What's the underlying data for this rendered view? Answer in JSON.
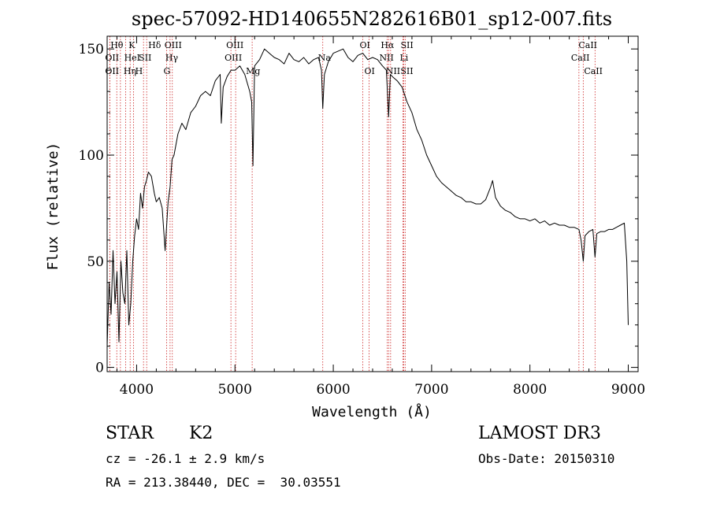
{
  "chart_data": {
    "type": "line",
    "title": "spec-57092-HD140655N282616B01_sp12-007.fits",
    "xlabel": "Wavelength (Å)",
    "ylabel": "Flux (relative)",
    "xlim": [
      3700,
      9100
    ],
    "ylim": [
      -2,
      156
    ],
    "x_ticks": [
      4000,
      5000,
      6000,
      7000,
      8000,
      9000
    ],
    "x_tick_labels": [
      "4000",
      "5000",
      "6000",
      "7000",
      "8000",
      "9000"
    ],
    "y_ticks": [
      0,
      50,
      100,
      150
    ],
    "y_tick_labels": [
      "0",
      "50",
      "100",
      "150"
    ],
    "grid": false,
    "series": [
      {
        "name": "spectrum",
        "x": [
          3700,
          3720,
          3740,
          3760,
          3780,
          3800,
          3820,
          3840,
          3860,
          3880,
          3900,
          3920,
          3940,
          3960,
          3980,
          4000,
          4020,
          4040,
          4060,
          4080,
          4100,
          4120,
          4150,
          4180,
          4200,
          4230,
          4260,
          4290,
          4320,
          4340,
          4360,
          4380,
          4420,
          4460,
          4500,
          4550,
          4600,
          4650,
          4700,
          4750,
          4800,
          4850,
          4861,
          4880,
          4920,
          4960,
          5000,
          5050,
          5100,
          5150,
          5170,
          5183,
          5200,
          5250,
          5300,
          5350,
          5400,
          5450,
          5500,
          5550,
          5600,
          5650,
          5700,
          5750,
          5800,
          5850,
          5880,
          5893,
          5910,
          5950,
          6000,
          6050,
          6100,
          6150,
          6200,
          6250,
          6300,
          6350,
          6400,
          6450,
          6500,
          6540,
          6563,
          6580,
          6600,
          6650,
          6700,
          6750,
          6800,
          6850,
          6900,
          6950,
          7000,
          7050,
          7100,
          7150,
          7200,
          7250,
          7300,
          7350,
          7400,
          7450,
          7500,
          7550,
          7600,
          7620,
          7650,
          7700,
          7750,
          7800,
          7850,
          7900,
          7950,
          8000,
          8050,
          8100,
          8150,
          8200,
          8250,
          8300,
          8350,
          8400,
          8450,
          8498,
          8520,
          8542,
          8560,
          8600,
          8640,
          8662,
          8680,
          8720,
          8760,
          8800,
          8840,
          8880,
          8920,
          8960,
          8985,
          9000
        ],
        "values": [
          10,
          40,
          25,
          55,
          30,
          45,
          12,
          50,
          35,
          30,
          55,
          20,
          30,
          50,
          62,
          70,
          65,
          82,
          75,
          85,
          88,
          92,
          90,
          82,
          78,
          80,
          75,
          55,
          78,
          85,
          98,
          100,
          110,
          115,
          112,
          120,
          123,
          128,
          130,
          128,
          135,
          138,
          115,
          132,
          137,
          140,
          140,
          142,
          138,
          130,
          125,
          95,
          142,
          145,
          150,
          148,
          146,
          145,
          143,
          148,
          145,
          144,
          146,
          143,
          145,
          146,
          140,
          122,
          138,
          144,
          148,
          149,
          150,
          146,
          144,
          147,
          148,
          145,
          146,
          145,
          142,
          140,
          118,
          138,
          137,
          135,
          132,
          125,
          120,
          112,
          107,
          100,
          95,
          90,
          87,
          85,
          83,
          81,
          80,
          78,
          78,
          77,
          77,
          79,
          85,
          88,
          80,
          76,
          74,
          73,
          71,
          70,
          70,
          69,
          70,
          68,
          69,
          67,
          68,
          67,
          67,
          66,
          66,
          65,
          60,
          50,
          62,
          64,
          65,
          52,
          63,
          64,
          64,
          65,
          65,
          66,
          67,
          68,
          50,
          20
        ]
      }
    ],
    "lines": [
      {
        "name": "Hθ",
        "x": 3798,
        "row": 0,
        "dx": -8
      },
      {
        "name": "OII",
        "x": 3727,
        "row": 1,
        "dx": -6
      },
      {
        "name": "OII",
        "x": 3727,
        "row": 2,
        "dx": -6
      },
      {
        "name": "K",
        "x": 3934,
        "row": 0,
        "dx": -2
      },
      {
        "name": "HeI",
        "x": 3889,
        "row": 1,
        "dx": -2
      },
      {
        "name": "SII",
        "x": 4070,
        "row": 1,
        "dx": -6
      },
      {
        "name": "Hη",
        "x": 3835,
        "row": 2,
        "dx": 4
      },
      {
        "name": "H",
        "x": 3969,
        "row": 2,
        "dx": 2
      },
      {
        "name": "Hδ",
        "x": 4102,
        "row": 0,
        "dx": 2
      },
      {
        "name": "OIII",
        "x": 4363,
        "row": 0,
        "dx": -10
      },
      {
        "name": "Hγ",
        "x": 4340,
        "row": 1,
        "dx": -6
      },
      {
        "name": "G",
        "x": 4305,
        "row": 2,
        "dx": -4
      },
      {
        "name": "OIII",
        "x": 5007,
        "row": 0,
        "dx": -12
      },
      {
        "name": "OIII",
        "x": 4959,
        "row": 1,
        "dx": -8
      },
      {
        "name": "Mg",
        "x": 5175,
        "row": 2,
        "dx": -8
      },
      {
        "name": "Na",
        "x": 5893,
        "row": 1,
        "dx": -6
      },
      {
        "name": "OI",
        "x": 6300,
        "row": 0,
        "dx": -4
      },
      {
        "name": "OI",
        "x": 6364,
        "row": 2,
        "dx": -6
      },
      {
        "name": "Hα",
        "x": 6563,
        "row": 0,
        "dx": -10
      },
      {
        "name": "SII",
        "x": 6716,
        "row": 0,
        "dx": -4
      },
      {
        "name": "NII",
        "x": 6548,
        "row": 1,
        "dx": -10
      },
      {
        "name": "Li",
        "x": 6708,
        "row": 1,
        "dx": -4
      },
      {
        "name": "NII",
        "x": 6583,
        "row": 2,
        "dx": -6
      },
      {
        "name": "SII",
        "x": 6731,
        "row": 2,
        "dx": -6
      },
      {
        "name": "CaII",
        "x": 8542,
        "row": 0,
        "dx": -6
      },
      {
        "name": "CaII",
        "x": 8498,
        "row": 1,
        "dx": -10
      },
      {
        "name": "CaII",
        "x": 8662,
        "row": 2,
        "dx": -14
      }
    ]
  },
  "info": {
    "object_type": "STAR",
    "subclass": "K2",
    "survey": "LAMOST DR3",
    "cz": "cz = -26.1 ± 2.9 km/s",
    "obs_date": "Obs-Date: 20150310",
    "coords": "RA = 213.38440, DEC =  30.03551"
  },
  "colors": {
    "spectrum": "#000000",
    "marker": "#cc2222",
    "background": "#ffffff"
  }
}
